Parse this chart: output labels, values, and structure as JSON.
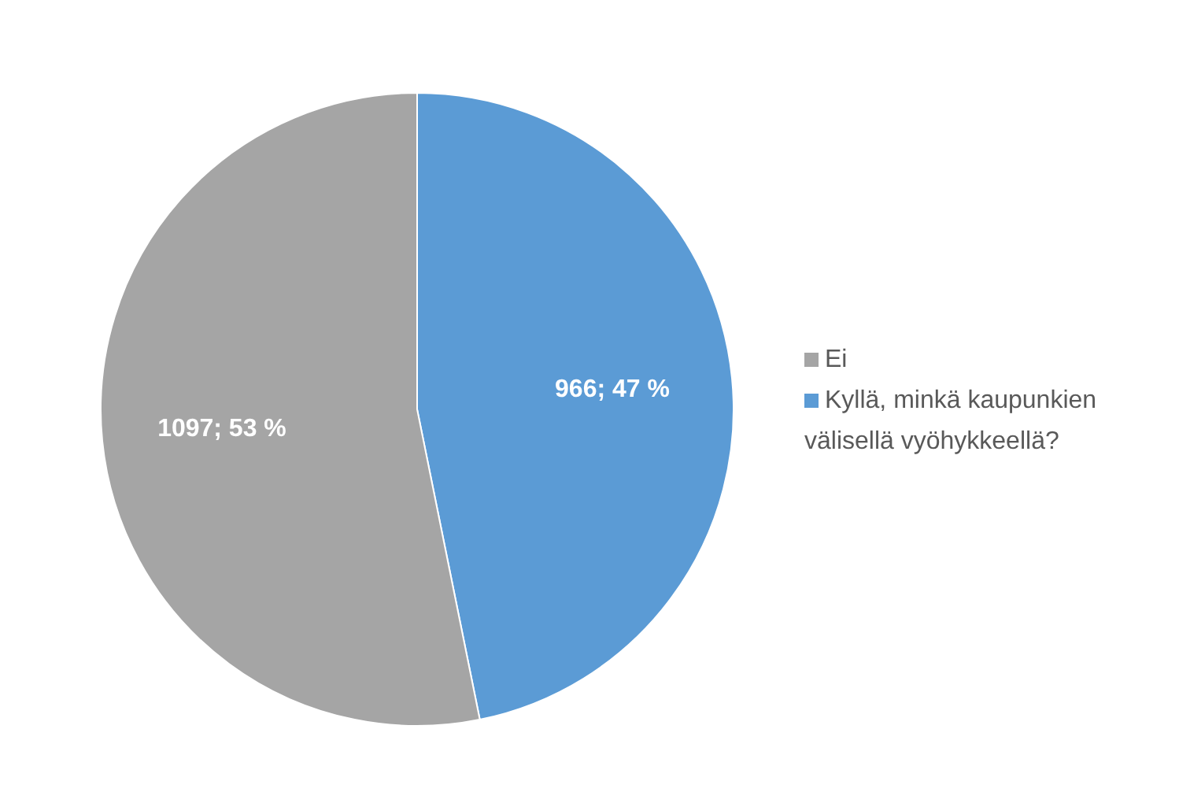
{
  "chart_data": {
    "type": "pie",
    "categories": [
      "Kyllä, minkä kaupunkien välisellä vyöhykkeellä?",
      "Ei"
    ],
    "values": [
      966,
      1097
    ],
    "colors": [
      "#5b9bd5",
      "#a5a5a5"
    ],
    "value_labels": [
      "966; 47 %",
      "1097; 53 %"
    ],
    "legend": "right"
  }
}
